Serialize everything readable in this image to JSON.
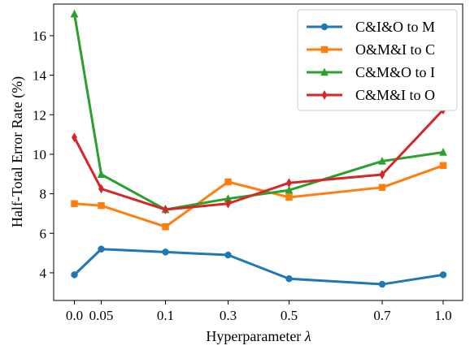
{
  "chart_data": {
    "type": "line",
    "x": [
      "0.0",
      "0.05",
      "0.1",
      "0.3",
      "0.5",
      "0.7",
      "1.0"
    ],
    "series": [
      {
        "name": "C&I&O to M",
        "color": "#1f77b4",
        "marker": "circle",
        "values": [
          3.9,
          5.2,
          5.05,
          4.9,
          3.7,
          3.42,
          3.9
        ]
      },
      {
        "name": "O&M&I to C",
        "color": "#ff7f0e",
        "marker": "square",
        "values": [
          7.5,
          7.4,
          6.33,
          8.6,
          7.82,
          8.32,
          9.43
        ]
      },
      {
        "name": "C&M&O to I",
        "color": "#2ca02c",
        "marker": "triangle",
        "values": [
          17.1,
          8.98,
          7.2,
          7.75,
          8.18,
          9.65,
          10.1
        ]
      },
      {
        "name": "C&M&I to O",
        "color": "#d62728",
        "marker": "diamond",
        "values": [
          10.85,
          8.25,
          7.2,
          7.5,
          8.55,
          8.97,
          12.25
        ]
      }
    ],
    "xlabel": "Hyperparameter",
    "xlabel_symbol": "λ",
    "ylabel": "Half-Total Error Rate (%)",
    "ylim": [
      2.6,
      17.6
    ],
    "yticks": [
      "4",
      "6",
      "8",
      "10",
      "12",
      "14",
      "16"
    ],
    "grid": false,
    "legend_position": "top-right"
  }
}
